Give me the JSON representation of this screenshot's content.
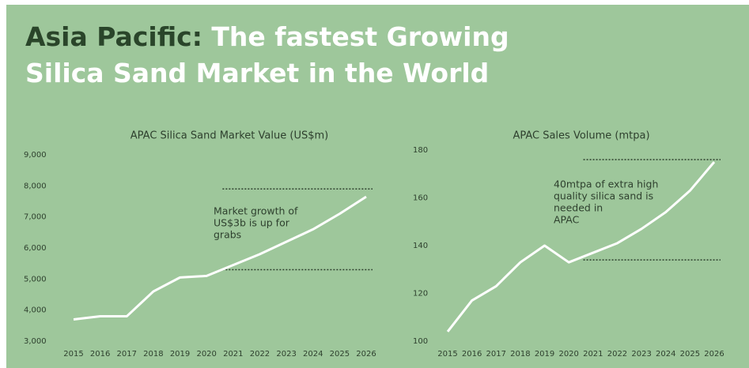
{
  "header": {
    "title_highlight": "Asia Pacific:",
    "title_line1": "The fastest Growing",
    "title_line2": "Silica Sand Market in the World"
  },
  "chart_data": [
    {
      "type": "line",
      "title": "APAC Silica Sand Market Value (US$m)",
      "categories": [
        "2015",
        "2016",
        "2017",
        "2018",
        "2019",
        "2020",
        "2021",
        "2022",
        "2023",
        "2024",
        "2025",
        "2026"
      ],
      "values": [
        3700,
        3800,
        3800,
        4600,
        5050,
        5100,
        5450,
        5800,
        6200,
        6600,
        7100,
        7650
      ],
      "color": "#ffffff",
      "ylim": [
        3000,
        9000
      ],
      "yticks": [
        {
          "value": 3000,
          "label": "3,000"
        },
        {
          "value": 4000,
          "label": "4,000"
        },
        {
          "value": 5000,
          "label": "5,000"
        },
        {
          "value": 6000,
          "label": "6,000"
        },
        {
          "value": 7000,
          "label": "7,000"
        },
        {
          "value": 8000,
          "label": "8,000"
        },
        {
          "value": 9000,
          "label": "9,000"
        }
      ],
      "reference_lines": [
        7900,
        5300
      ],
      "annotation": [
        "Market growth of",
        "US$3b is up for",
        "grabs"
      ]
    },
    {
      "type": "line",
      "title": "APAC Sales Volume (mtpa)",
      "categories": [
        "2015",
        "2016",
        "2017",
        "2018",
        "2019",
        "2020",
        "2021",
        "2022",
        "2023",
        "2024",
        "2025",
        "2026"
      ],
      "values": [
        104,
        117,
        123,
        133,
        140,
        133,
        137,
        141,
        147,
        154,
        163,
        175
      ],
      "color": "#ffffff",
      "ylim": [
        100,
        180
      ],
      "yticks": [
        100,
        120,
        140,
        160,
        180
      ],
      "reference_lines": [
        176,
        134
      ],
      "annotation": [
        "40mtpa of extra high",
        "quality silica sand is",
        "needed in",
        "APAC"
      ]
    }
  ]
}
